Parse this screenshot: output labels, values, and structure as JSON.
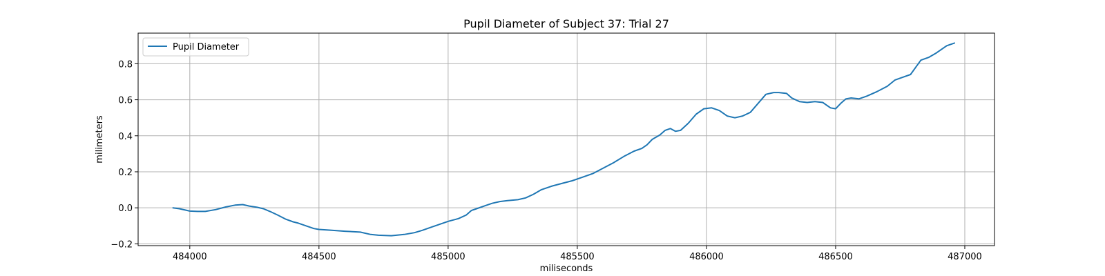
{
  "chart_data": {
    "type": "line",
    "title": "Pupil Diameter of Subject 37: Trial 27",
    "xlabel": "miliseconds",
    "ylabel": "milimeters",
    "xlim": [
      483800,
      487115
    ],
    "ylim": [
      -0.21,
      0.97
    ],
    "xticks": [
      484000,
      484500,
      485000,
      485500,
      486000,
      486500,
      487000
    ],
    "yticks": [
      -0.2,
      0.0,
      0.2,
      0.4,
      0.6,
      0.8
    ],
    "ytick_labels": [
      "−0.2",
      "0.0",
      "0.2",
      "0.4",
      "0.6",
      "0.8"
    ],
    "grid": true,
    "legend_position": "top-left",
    "series": [
      {
        "name": "Pupil Diameter",
        "color": "#1f77b4",
        "x": [
          483935,
          483960,
          484000,
          484030,
          484060,
          484100,
          484140,
          484175,
          484205,
          484230,
          484260,
          484285,
          484310,
          484340,
          484370,
          484400,
          484420,
          484450,
          484480,
          484500,
          484550,
          484600,
          484660,
          484700,
          484730,
          484780,
          484830,
          484870,
          484900,
          484940,
          484980,
          485000,
          485040,
          485070,
          485090,
          485110,
          485140,
          485170,
          485200,
          485230,
          485270,
          485300,
          485330,
          485360,
          485400,
          485440,
          485480,
          485520,
          485560,
          485600,
          485640,
          485680,
          485720,
          485750,
          485770,
          485790,
          485820,
          485840,
          485860,
          485880,
          485900,
          485930,
          485960,
          485990,
          486020,
          486050,
          486080,
          486110,
          486140,
          486170,
          486200,
          486230,
          486260,
          486280,
          486310,
          486330,
          486360,
          486390,
          486420,
          486450,
          486480,
          486500,
          486520,
          486540,
          486560,
          486590,
          486620,
          486660,
          486700,
          486730,
          486760,
          486790,
          486810,
          486830,
          486860,
          486890,
          486930,
          486960
        ],
        "y": [
          0.0,
          -0.005,
          -0.018,
          -0.02,
          -0.02,
          -0.01,
          0.005,
          0.015,
          0.018,
          0.01,
          0.003,
          -0.005,
          -0.02,
          -0.04,
          -0.062,
          -0.078,
          -0.085,
          -0.1,
          -0.115,
          -0.12,
          -0.125,
          -0.13,
          -0.135,
          -0.148,
          -0.152,
          -0.155,
          -0.148,
          -0.138,
          -0.125,
          -0.105,
          -0.085,
          -0.075,
          -0.06,
          -0.04,
          -0.015,
          -0.005,
          0.01,
          0.025,
          0.035,
          0.04,
          0.045,
          0.055,
          0.075,
          0.1,
          0.12,
          0.135,
          0.15,
          0.17,
          0.19,
          0.22,
          0.25,
          0.285,
          0.315,
          0.33,
          0.35,
          0.38,
          0.405,
          0.43,
          0.44,
          0.425,
          0.43,
          0.47,
          0.52,
          0.55,
          0.555,
          0.54,
          0.51,
          0.5,
          0.51,
          0.53,
          0.58,
          0.63,
          0.64,
          0.64,
          0.635,
          0.61,
          0.59,
          0.585,
          0.59,
          0.585,
          0.555,
          0.55,
          0.58,
          0.605,
          0.61,
          0.605,
          0.62,
          0.645,
          0.675,
          0.71,
          0.725,
          0.74,
          0.78,
          0.82,
          0.835,
          0.86,
          0.9,
          0.915
        ]
      }
    ]
  }
}
